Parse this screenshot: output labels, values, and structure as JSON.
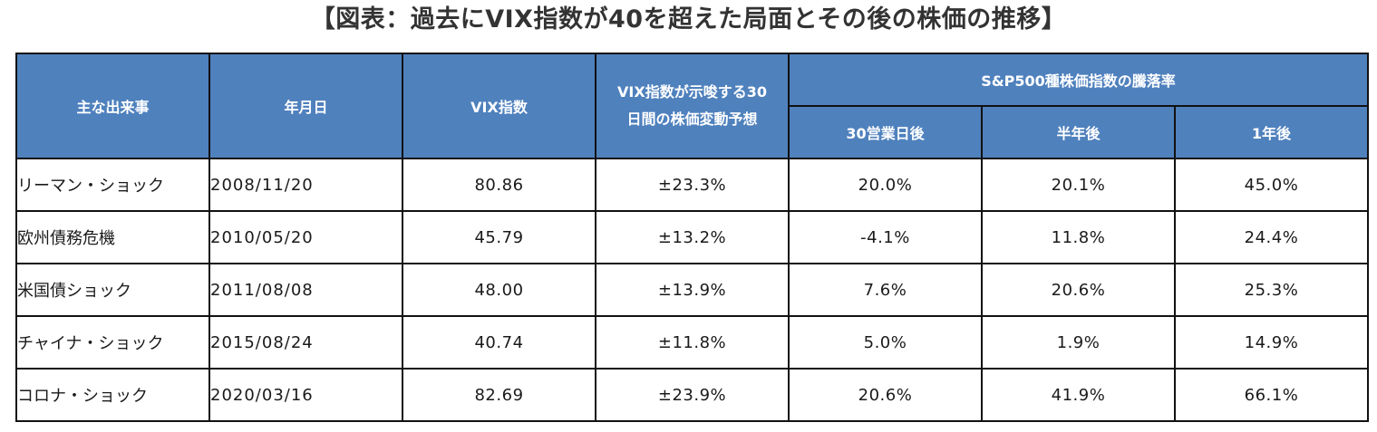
{
  "title": "【図表：過去にVIX指数が40を超えた局面とその後の株価の推移】",
  "table": {
    "headers": {
      "event": "主な出来事",
      "date": "年月日",
      "vix": "VIX指数",
      "implied_line1": "VIX指数が示唆する30",
      "implied_line2": "日間の株価変動予想",
      "sp_group": "S&P500種株価指数の騰落率",
      "after_30d": "30営業日後",
      "after_half": "半年後",
      "after_1y": "1年後"
    },
    "rows": [
      {
        "event": "リーマン・ショック",
        "date": "2008/11/20",
        "vix": "80.86",
        "implied": "±23.3%",
        "d30": "20.0%",
        "half": "20.1%",
        "y1": "45.0%"
      },
      {
        "event": "欧州債務危機",
        "date": "2010/05/20",
        "vix": "45.79",
        "implied": "±13.2%",
        "d30": "-4.1%",
        "half": "11.8%",
        "y1": "24.4%"
      },
      {
        "event": "米国債ショック",
        "date": "2011/08/08",
        "vix": "48.00",
        "implied": "±13.9%",
        "d30": "7.6%",
        "half": "20.6%",
        "y1": "25.3%"
      },
      {
        "event": "チャイナ・ショック",
        "date": "2015/08/24",
        "vix": "40.74",
        "implied": "±11.8%",
        "d30": "5.0%",
        "half": "1.9%",
        "y1": "14.9%"
      },
      {
        "event": "コロナ・ショック",
        "date": "2020/03/16",
        "vix": "82.69",
        "implied": "±23.9%",
        "d30": "20.6%",
        "half": "41.9%",
        "y1": "66.1%"
      }
    ]
  },
  "colors": {
    "header_bg": "#4f81bd",
    "header_text": "#ffffff",
    "border": "#111111"
  }
}
